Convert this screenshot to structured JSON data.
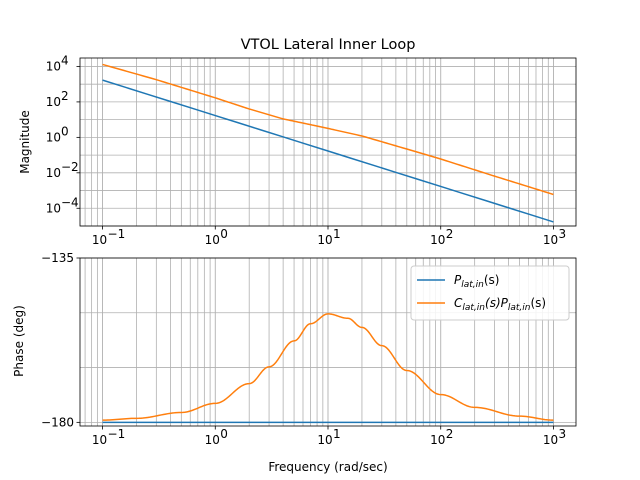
{
  "chart_data": [
    {
      "type": "line",
      "title": "VTOL Lateral Inner Loop",
      "xlabel": "",
      "ylabel": "Magnitude",
      "xscale": "log",
      "yscale": "log",
      "xlim": [
        0.1,
        1000
      ],
      "ylim": [
        1e-05,
        30000
      ],
      "grid": true,
      "xticks": [
        0.1,
        1,
        10,
        100,
        1000
      ],
      "xtick_labels": [
        "10",
        "10",
        "10",
        "10",
        "10"
      ],
      "xtick_exps": [
        "−1",
        "0",
        "1",
        "2",
        "3"
      ],
      "yticks": [
        0.0001,
        0.01,
        1,
        100,
        10000
      ],
      "ytick_labels": [
        "10",
        "10",
        "10",
        "10",
        "10"
      ],
      "ytick_exps": [
        "−4",
        "−2",
        "0",
        "2",
        "4"
      ],
      "series": [
        {
          "color": "#1f77b4",
          "x": [
            0.1,
            1000
          ],
          "y": [
            1700,
            1.7e-05
          ]
        },
        {
          "color": "#ff7f0e",
          "x": [
            0.1,
            0.3,
            1,
            2,
            4,
            7,
            10,
            20,
            50,
            100,
            300,
            1000
          ],
          "y": [
            13000,
            1800,
            170,
            40,
            11,
            5.2,
            3.2,
            1.2,
            0.22,
            0.06,
            0.0065,
            0.0006
          ]
        }
      ]
    },
    {
      "type": "line",
      "title": "",
      "xlabel": "Frequency (rad/sec)",
      "ylabel": "Phase (deg)",
      "xscale": "log",
      "yscale": "linear",
      "xlim": [
        0.1,
        1000
      ],
      "ylim": [
        -181,
        -135
      ],
      "grid": true,
      "xticks": [
        0.1,
        1,
        10,
        100,
        1000
      ],
      "xtick_labels": [
        "10",
        "10",
        "10",
        "10",
        "10"
      ],
      "xtick_exps": [
        "−1",
        "0",
        "1",
        "2",
        "3"
      ],
      "yticks": [
        -180,
        -135
      ],
      "ytick_labels": [
        "−180",
        "−135"
      ],
      "legend_placement": "top-right",
      "series": [
        {
          "name_main": "P",
          "name_sub": "lat,in",
          "name_tail": "(s)",
          "color": "#1f77b4",
          "x": [
            0.1,
            1000
          ],
          "y": [
            -180,
            -180
          ]
        },
        {
          "name_main": "C",
          "name_sub": "lat,in",
          "name_mid": "(s)P",
          "name_sub2": "lat,in",
          "name_tail": "(s)",
          "color": "#ff7f0e",
          "x": [
            0.1,
            0.2,
            0.5,
            1,
            2,
            3,
            5,
            7,
            10,
            15,
            20,
            30,
            50,
            100,
            200,
            500,
            1000
          ],
          "y": [
            -179.4,
            -178.9,
            -177.3,
            -174.8,
            -169.4,
            -164.8,
            -157.7,
            -153.0,
            -150.3,
            -151.5,
            -154.0,
            -159.0,
            -165.8,
            -172.4,
            -175.9,
            -178.3,
            -179.4
          ]
        }
      ]
    }
  ]
}
